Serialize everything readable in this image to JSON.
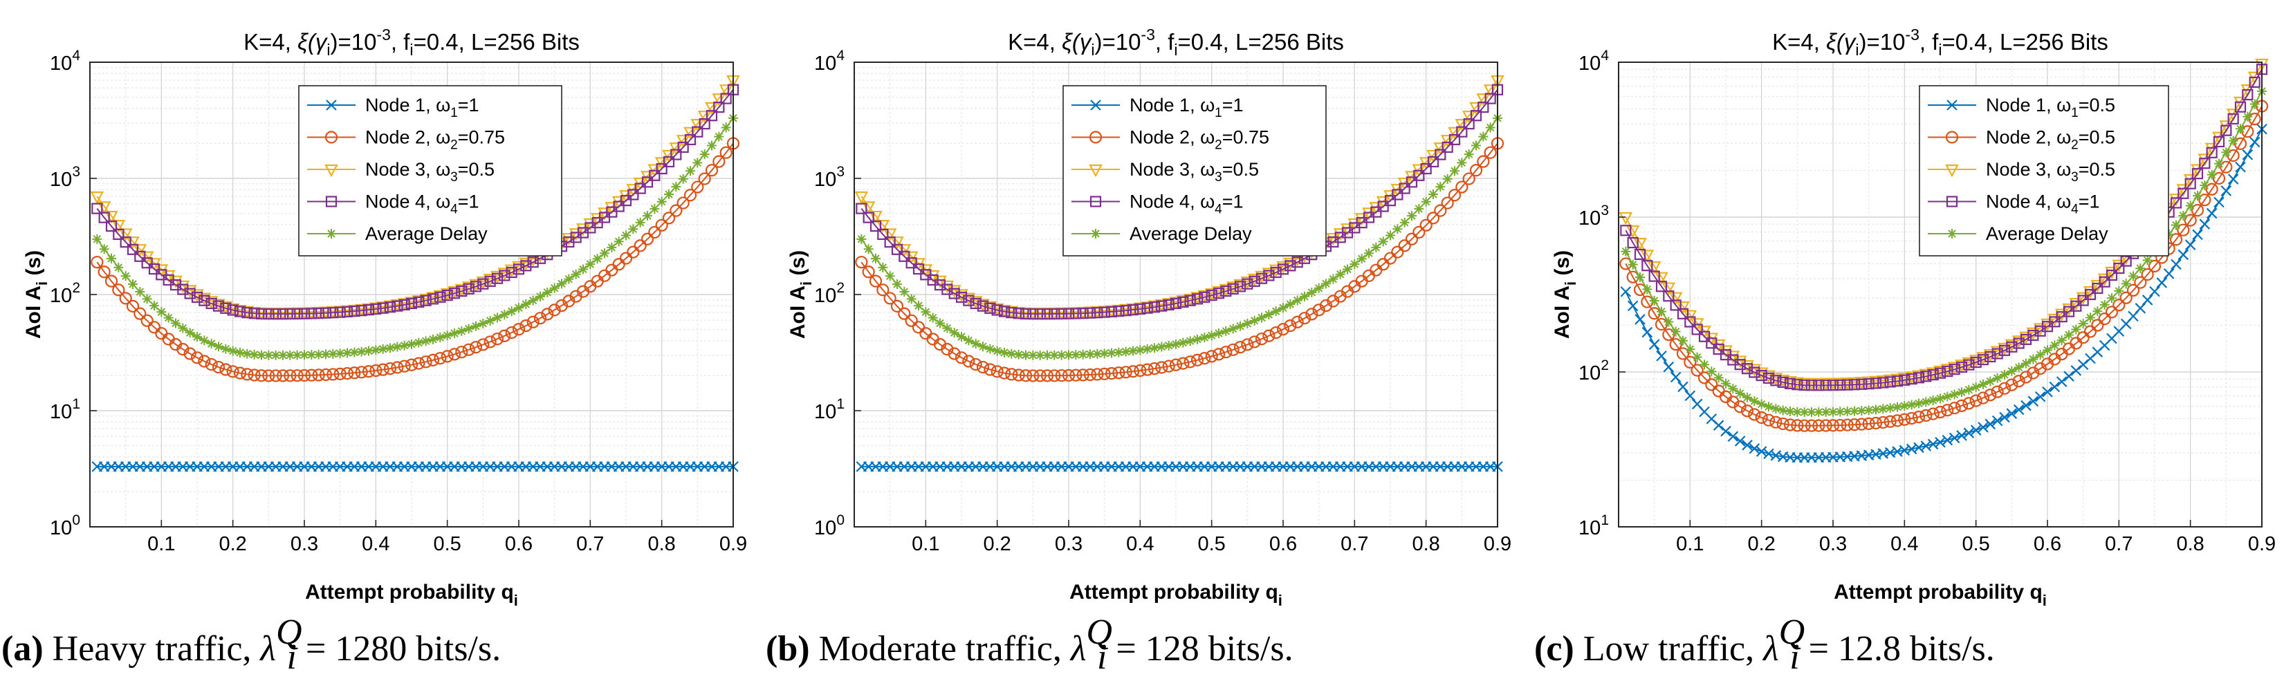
{
  "chart_data": [
    {
      "type": "line",
      "title_parts": {
        "a": "K=4, ",
        "xi": "ξ(γ",
        "sub_i": "i",
        "b": ")=10",
        "sup_exp": "-3",
        "c": ", f",
        "sub_i2": "i",
        "d": "=0.4, L=256 Bits"
      },
      "xlabel": "Attempt probability q",
      "xlabel_sub": "i",
      "ylabel": "AoI A",
      "ylabel_sub": "i",
      "ylabel_unit": " (s)",
      "yscale": "log",
      "ylim": [
        1,
        10000
      ],
      "xlim": [
        0,
        0.9
      ],
      "xticks": [
        "0.1",
        "0.2",
        "0.3",
        "0.4",
        "0.5",
        "0.6",
        "0.7",
        "0.8",
        "0.9"
      ],
      "yticks": [
        {
          "base": "10",
          "exp": "0"
        },
        {
          "base": "10",
          "exp": "1"
        },
        {
          "base": "10",
          "exp": "2"
        },
        {
          "base": "10",
          "exp": "3"
        },
        {
          "base": "10",
          "exp": "4"
        }
      ],
      "legend_position": "top-center",
      "series": [
        {
          "name": "Node 1, ω",
          "sub": "1",
          "val": "=1",
          "marker": "x",
          "color": "#0072BD",
          "start": 3.3,
          "min": 3.3,
          "qmin": 0.25,
          "end": 3.3
        },
        {
          "name": "Node 2, ω",
          "sub": "2",
          "val": "=0.75",
          "marker": "o",
          "color": "#D95319",
          "start": 190,
          "min": 20,
          "qmin": 0.25,
          "end": 2000
        },
        {
          "name": "Node 3, ω",
          "sub": "3",
          "val": "=0.5",
          "marker": "v",
          "color": "#EDB120",
          "start": 700,
          "min": 70,
          "qmin": 0.25,
          "end": 7000
        },
        {
          "name": "Node 4, ω",
          "sub": "4",
          "val": "=1",
          "marker": "s",
          "color": "#7E2F8E",
          "start": 550,
          "min": 68,
          "qmin": 0.25,
          "end": 5800
        },
        {
          "name": "Average Delay",
          "sub": "",
          "val": "",
          "marker": "*",
          "color": "#77AC30",
          "start": 300,
          "min": 30,
          "qmin": 0.25,
          "end": 3300
        }
      ],
      "caption": {
        "label": "(a)",
        "text": " Heavy traffic, ",
        "lam": "λ",
        "sup": "Q",
        "sub": "i",
        "rest": " = 1280 bits/s."
      }
    },
    {
      "type": "line",
      "title_parts": {
        "a": "K=4, ",
        "xi": "ξ(γ",
        "sub_i": "i",
        "b": ")=10",
        "sup_exp": "-3",
        "c": ", f",
        "sub_i2": "i",
        "d": "=0.4, L=256 Bits"
      },
      "xlabel": "Attempt probability q",
      "xlabel_sub": "i",
      "ylabel": "AoI A",
      "ylabel_sub": "i",
      "ylabel_unit": " (s)",
      "yscale": "log",
      "ylim": [
        1,
        10000
      ],
      "xlim": [
        0,
        0.9
      ],
      "xticks": [
        "0.1",
        "0.2",
        "0.3",
        "0.4",
        "0.5",
        "0.6",
        "0.7",
        "0.8",
        "0.9"
      ],
      "yticks": [
        {
          "base": "10",
          "exp": "0"
        },
        {
          "base": "10",
          "exp": "1"
        },
        {
          "base": "10",
          "exp": "2"
        },
        {
          "base": "10",
          "exp": "3"
        },
        {
          "base": "10",
          "exp": "4"
        }
      ],
      "legend_position": "top-center",
      "series": [
        {
          "name": "Node 1, ω",
          "sub": "1",
          "val": "=1",
          "marker": "x",
          "color": "#0072BD",
          "start": 3.3,
          "min": 3.3,
          "qmin": 0.25,
          "end": 3.3
        },
        {
          "name": "Node 2, ω",
          "sub": "2",
          "val": "=0.75",
          "marker": "o",
          "color": "#D95319",
          "start": 190,
          "min": 20,
          "qmin": 0.25,
          "end": 2000
        },
        {
          "name": "Node 3, ω",
          "sub": "3",
          "val": "=0.5",
          "marker": "v",
          "color": "#EDB120",
          "start": 700,
          "min": 70,
          "qmin": 0.25,
          "end": 7000
        },
        {
          "name": "Node 4, ω",
          "sub": "4",
          "val": "=1",
          "marker": "s",
          "color": "#7E2F8E",
          "start": 550,
          "min": 68,
          "qmin": 0.25,
          "end": 5800
        },
        {
          "name": "Average Delay",
          "sub": "",
          "val": "",
          "marker": "*",
          "color": "#77AC30",
          "start": 300,
          "min": 30,
          "qmin": 0.25,
          "end": 3300
        }
      ],
      "caption": {
        "label": "(b)",
        "text": " Moderate traffic, ",
        "lam": "λ",
        "sup": "Q",
        "sub": "i",
        "rest": " = 128 bits/s."
      }
    },
    {
      "type": "line",
      "title_parts": {
        "a": "K=4, ",
        "xi": "ξ(γ",
        "sub_i": "i",
        "b": ")=10",
        "sup_exp": "-3",
        "c": ", f",
        "sub_i2": "i",
        "d": "=0.4, L=256 Bits"
      },
      "xlabel": "Attempt probability q",
      "xlabel_sub": "i",
      "ylabel": "AoI A",
      "ylabel_sub": "i",
      "ylabel_unit": " (s)",
      "yscale": "log",
      "ylim": [
        10,
        10000
      ],
      "xlim": [
        0,
        0.9
      ],
      "xticks": [
        "0.1",
        "0.2",
        "0.3",
        "0.4",
        "0.5",
        "0.6",
        "0.7",
        "0.8",
        "0.9"
      ],
      "yticks": [
        {
          "base": "10",
          "exp": "1"
        },
        {
          "base": "10",
          "exp": "2"
        },
        {
          "base": "10",
          "exp": "3"
        },
        {
          "base": "10",
          "exp": "4"
        }
      ],
      "legend_position": "top-right",
      "series": [
        {
          "name": "Node 1, ω",
          "sub": "1",
          "val": "=0.5",
          "marker": "x",
          "color": "#0072BD",
          "start": 330,
          "min": 28,
          "qmin": 0.25,
          "end": 3700
        },
        {
          "name": "Node 2, ω",
          "sub": "2",
          "val": "=0.5",
          "marker": "o",
          "color": "#D95319",
          "start": 500,
          "min": 45,
          "qmin": 0.26,
          "end": 5200
        },
        {
          "name": "Node 3, ω",
          "sub": "3",
          "val": "=0.5",
          "marker": "v",
          "color": "#EDB120",
          "start": 1000,
          "min": 85,
          "qmin": 0.27,
          "end": 9800
        },
        {
          "name": "Node 4, ω",
          "sub": "4",
          "val": "=1",
          "marker": "s",
          "color": "#7E2F8E",
          "start": 820,
          "min": 82,
          "qmin": 0.27,
          "end": 9000
        },
        {
          "name": "Average Delay",
          "sub": "",
          "val": "",
          "marker": "*",
          "color": "#77AC30",
          "start": 600,
          "min": 55,
          "qmin": 0.26,
          "end": 6500
        }
      ],
      "caption": {
        "label": "(c)",
        "text": " Low traffic, ",
        "lam": "λ",
        "sup": "Q",
        "sub": "i",
        "rest": " = 12.8 bits/s."
      }
    }
  ]
}
